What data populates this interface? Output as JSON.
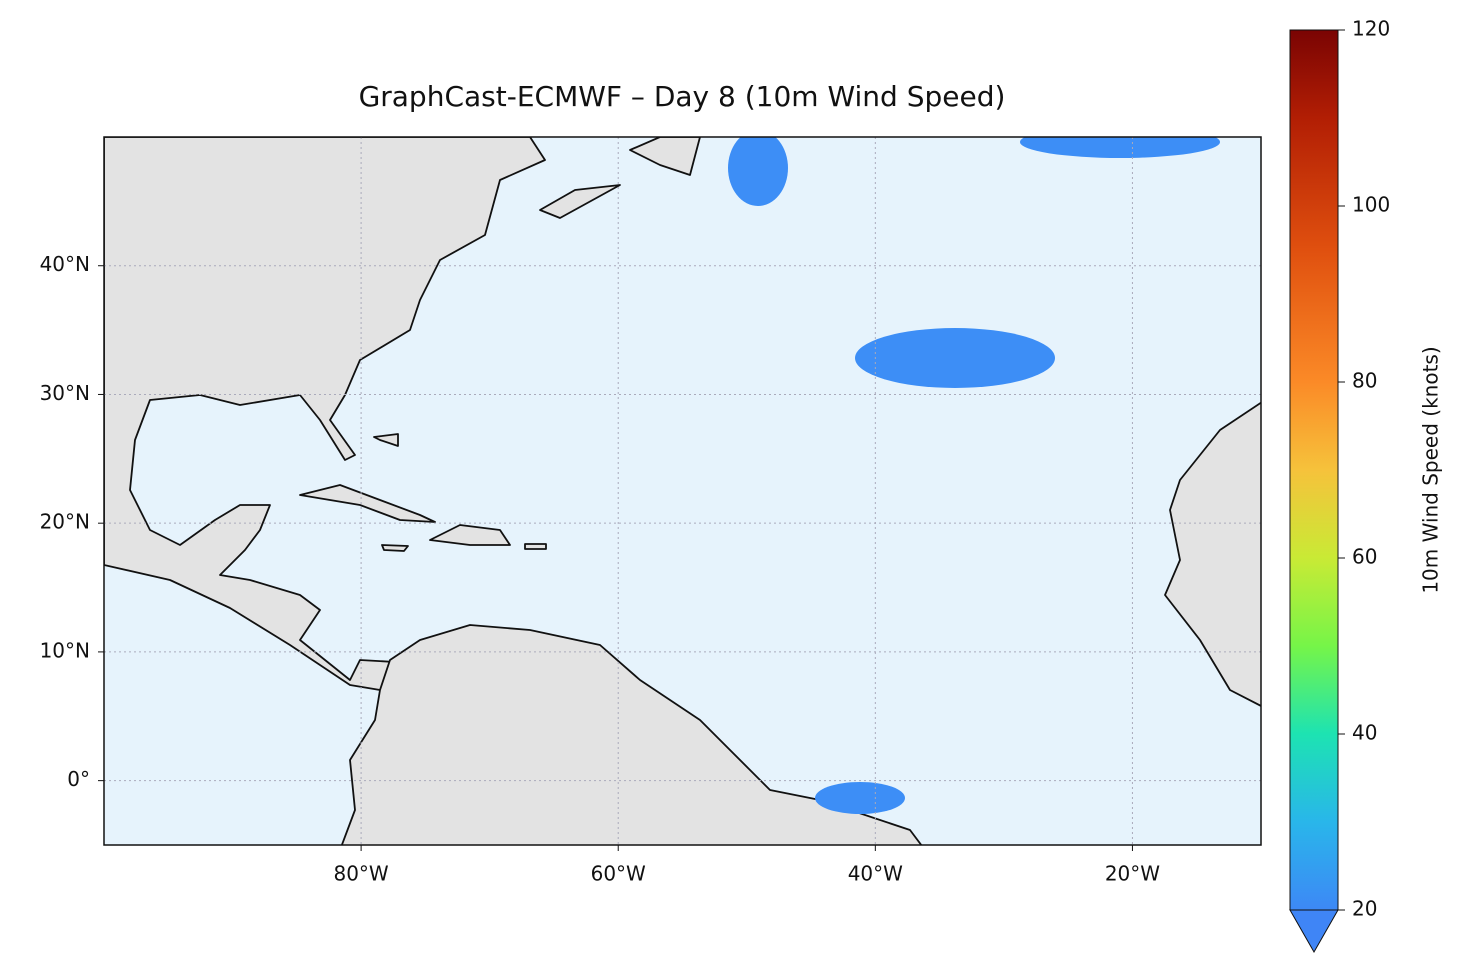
{
  "map": {
    "title": "GraphCast-ECMWF – Day 8 (10m Wind Speed)",
    "xlim": [
      -100,
      -10
    ],
    "ylim": [
      -5,
      50
    ],
    "xticks": [
      {
        "value": -80,
        "label": "80°W"
      },
      {
        "value": -60,
        "label": "60°W"
      },
      {
        "value": -40,
        "label": "40°W"
      },
      {
        "value": -20,
        "label": "20°W"
      }
    ],
    "yticks": [
      {
        "value": 0,
        "label": "0°"
      },
      {
        "value": 10,
        "label": "10°N"
      },
      {
        "value": 20,
        "label": "20°N"
      },
      {
        "value": 30,
        "label": "30°N"
      },
      {
        "value": 40,
        "label": "40°N"
      }
    ],
    "grid": true
  },
  "colorbar": {
    "label": "10m Wind Speed (knots)",
    "lim": [
      20,
      120
    ],
    "ticks": [
      20,
      40,
      60,
      80,
      100,
      120
    ]
  }
}
